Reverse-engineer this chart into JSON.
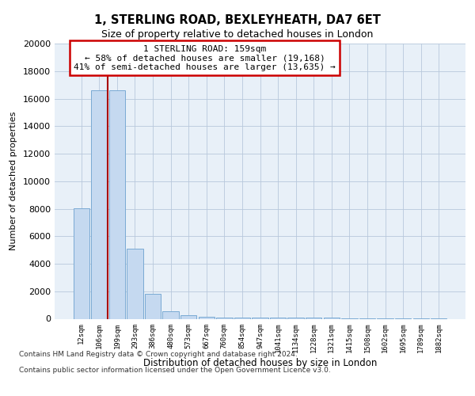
{
  "title1": "1, STERLING ROAD, BEXLEYHEATH, DA7 6ET",
  "title2": "Size of property relative to detached houses in London",
  "xlabel": "Distribution of detached houses by size in London",
  "ylabel": "Number of detached properties",
  "categories": [
    "12sqm",
    "106sqm",
    "199sqm",
    "293sqm",
    "386sqm",
    "480sqm",
    "573sqm",
    "667sqm",
    "760sqm",
    "854sqm",
    "947sqm",
    "1041sqm",
    "1134sqm",
    "1228sqm",
    "1321sqm",
    "1415sqm",
    "1508sqm",
    "1602sqm",
    "1695sqm",
    "1789sqm",
    "1882sqm"
  ],
  "values": [
    8050,
    16600,
    16600,
    5100,
    1800,
    550,
    270,
    160,
    110,
    90,
    90,
    75,
    75,
    65,
    60,
    55,
    50,
    45,
    40,
    35,
    30
  ],
  "bar_color": "#c5d9f0",
  "bar_edge_color": "#7aaad4",
  "annotation_text": "1 STERLING ROAD: 159sqm\n← 58% of detached houses are smaller (19,168)\n41% of semi-detached houses are larger (13,635) →",
  "annotation_box_color": "#ffffff",
  "annotation_box_edge_color": "#cc0000",
  "red_line_color": "#aa0000",
  "ylim": [
    0,
    20000
  ],
  "yticks": [
    0,
    2000,
    4000,
    6000,
    8000,
    10000,
    12000,
    14000,
    16000,
    18000,
    20000
  ],
  "footer1": "Contains HM Land Registry data © Crown copyright and database right 2024.",
  "footer2": "Contains public sector information licensed under the Open Government Licence v3.0.",
  "plot_bg_color": "#e8f0f8"
}
